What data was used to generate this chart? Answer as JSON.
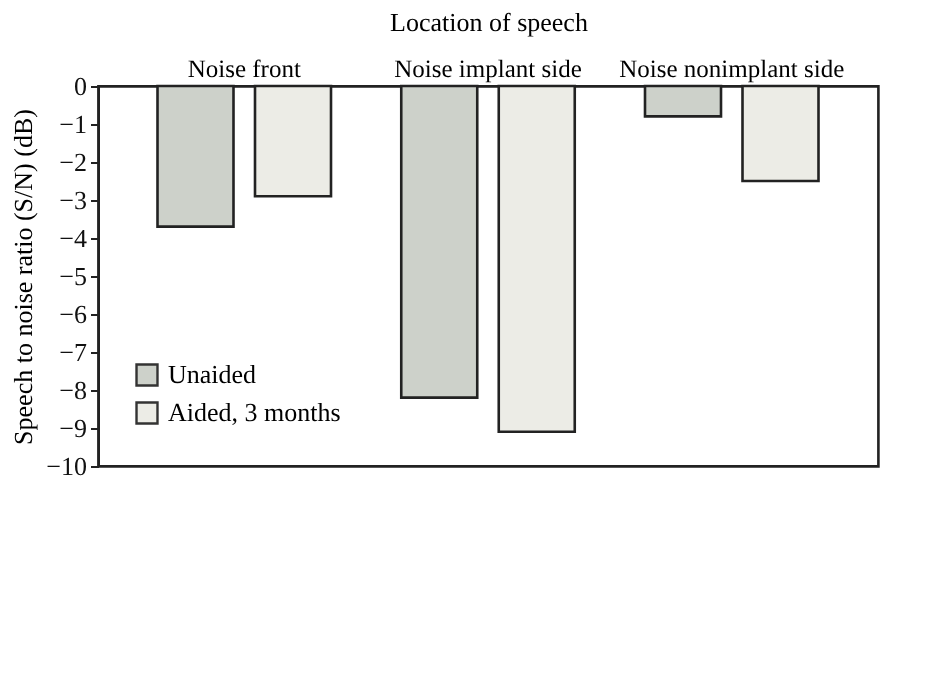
{
  "chart_data": {
    "type": "bar",
    "xlabel": "Location of speech",
    "ylabel": "Speech to noise ratio (S/N) (dB)",
    "categories": [
      "Noise front",
      "Noise implant side",
      "Noise nonimplant side"
    ],
    "series": [
      {
        "name": "Unaided",
        "color": "#cdd1ca",
        "values": [
          -3.7,
          -8.2,
          -0.8
        ]
      },
      {
        "name": "Aided, 3 months",
        "color": "#ecece6",
        "values": [
          -2.9,
          -9.1,
          -2.5
        ]
      }
    ],
    "ylim": [
      -10,
      0
    ],
    "yticks": [
      -10,
      -9,
      -8,
      -7,
      -6,
      -5,
      -4,
      -3,
      -2,
      -1,
      0
    ],
    "grid": false,
    "legend": "bottom left"
  }
}
